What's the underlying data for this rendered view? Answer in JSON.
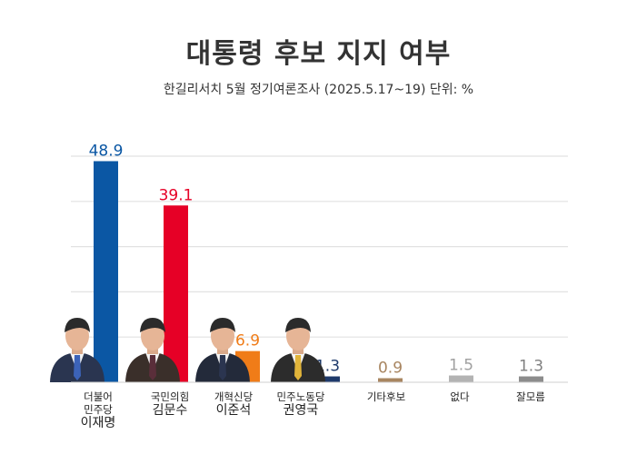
{
  "chart_data": {
    "type": "bar",
    "title": "대통령 후보 지지 여부",
    "subtitle": "한길리서치 5월 정기여론조사 (2025.5.17~19) 단위: %",
    "ylim": [
      0,
      50
    ],
    "grid": true,
    "categories": [
      {
        "line1": "더불어",
        "line2": "민주당",
        "name": "이재명",
        "color": "#0B57A4",
        "label_color": "#0B57A4",
        "photo": true
      },
      {
        "line1": "국민의힘",
        "line2": "",
        "name": "김문수",
        "color": "#E60026",
        "label_color": "#E60026",
        "photo": true
      },
      {
        "line1": "개혁신당",
        "line2": "",
        "name": "이준석",
        "color": "#F07C18",
        "label_color": "#F07C18",
        "photo": true
      },
      {
        "line1": "민주노동당",
        "line2": "",
        "name": "권영국",
        "color": "#1E3A6B",
        "label_color": "#1E3A6B",
        "photo": true
      },
      {
        "line1": "기타후보",
        "line2": "",
        "name": "",
        "color": "#A88560",
        "label_color": "#A88560",
        "photo": false
      },
      {
        "line1": "없다",
        "line2": "",
        "name": "",
        "color": "#B3B3B3",
        "label_color": "#A0A0A0",
        "photo": false
      },
      {
        "line1": "잘모름",
        "line2": "",
        "name": "",
        "color": "#8C8C8C",
        "label_color": "#808080",
        "photo": false
      }
    ],
    "values": [
      48.9,
      39.1,
      6.9,
      1.3,
      0.9,
      1.5,
      1.3
    ],
    "value_labels": [
      "48.9",
      "39.1",
      "6.9",
      "1.3",
      "0.9",
      "1.5",
      "1.3"
    ]
  }
}
